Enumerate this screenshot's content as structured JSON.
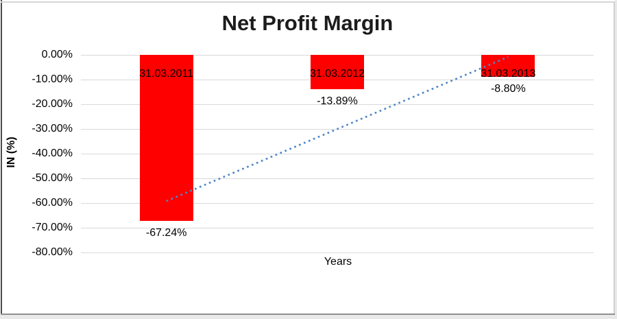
{
  "chart_data": {
    "type": "bar",
    "title": "Net Profit Margin",
    "xlabel": "Years",
    "ylabel": "IN (%)",
    "categories": [
      "31.03.2011",
      "31.03.2012",
      "31.03.2013"
    ],
    "values": [
      -67.24,
      -13.89,
      -8.8
    ],
    "data_labels": [
      "-67.24%",
      "-13.89%",
      "-8.80%"
    ],
    "y_ticks": [
      "0.00%",
      "-10.00%",
      "-20.00%",
      "-30.00%",
      "-40.00%",
      "-50.00%",
      "-60.00%",
      "-70.00%",
      "-80.00%"
    ],
    "ylim": [
      -80,
      0
    ],
    "grid": true,
    "legend": false,
    "bar_color": "#FF0000",
    "gridline_color": "#D9D9D9",
    "trendline": {
      "type": "linear",
      "style": "dotted",
      "color": "#4E86C8",
      "start_value": -59.2,
      "end_value": -0.8
    }
  }
}
